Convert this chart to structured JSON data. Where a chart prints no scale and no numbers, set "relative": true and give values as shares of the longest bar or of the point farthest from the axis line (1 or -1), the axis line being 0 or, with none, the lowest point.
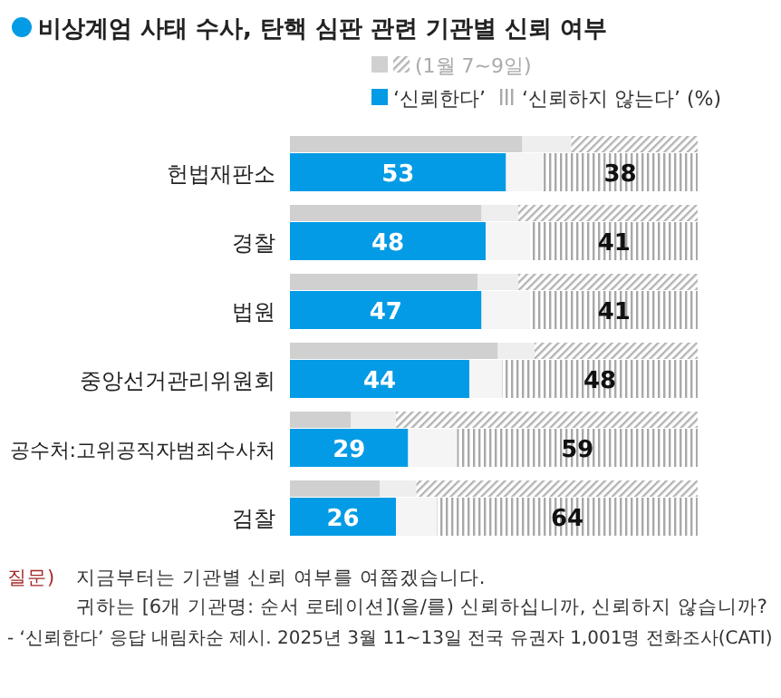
{
  "chart_data": [
    {
      "type": "bar",
      "orientation": "horizontal",
      "stacked": true,
      "relative": true,
      "title": "비상계엄 사태 수사, 탄핵 심판 관련 기관별 신뢰 여부",
      "legend": "top",
      "categories": [
        null,
        null,
        null,
        null,
        null,
        null
      ],
      "series": [
        {
          "name": "(1월 7~9일)",
          "color": "#d0d0d0",
          "values": [
            0.57,
            0.47,
            0.46,
            0.51,
            0.15,
            0.22
          ]
        },
        {
          "color": "#eeeeee",
          "values": [
            0.12,
            0.09,
            0.1,
            0.09,
            0.11,
            0.09
          ]
        },
        {
          "color": "#b4b4b4",
          "values": [
            0.31,
            0.44,
            0.44,
            0.4,
            0.74,
            0.69
          ]
        }
      ]
    },
    {
      "type": "bar",
      "orientation": "horizontal",
      "stacked": true,
      "xlim": [
        0,
        100
      ],
      "legend_title": "(%)",
      "legend": "top",
      "categories": [
        "헌법재판소",
        "경찰",
        "법원",
        "중앙선거관리위원회",
        "공수처:고위공직자범죄수사처",
        "검찰"
      ],
      "series": [
        {
          "name": "‘신뢰한다’",
          "color": "#039be5",
          "values": [
            53,
            48,
            47,
            44,
            29,
            26
          ],
          "value_labels": [
            "53",
            "48",
            "47",
            "44",
            "29",
            "26"
          ]
        },
        {
          "color": "#f5f5f5",
          "values": [
            9,
            11,
            12,
            8,
            12,
            10
          ]
        },
        {
          "name": "‘신뢰하지 않는다’",
          "color": "#a8a8a8",
          "values": [
            38,
            41,
            41,
            48,
            59,
            64
          ],
          "value_labels": [
            "38",
            "41",
            "41",
            "48",
            "59",
            "64"
          ]
        }
      ],
      "annotations": [
        "질문)",
        "지금부터는 기관별 신뢰 여부를 여쭙겠습니다.",
        "귀하는 [6개 기관명: 순서 로테이션](을/를) 신뢰하십니까, 신뢰하지 않습니까?",
        "- ‘신뢰한다’ 응답 내림차순 제시. 2025년 3월 11~13일 전국 유권자 1,001명 전화조사(CATI)"
      ]
    }
  ]
}
